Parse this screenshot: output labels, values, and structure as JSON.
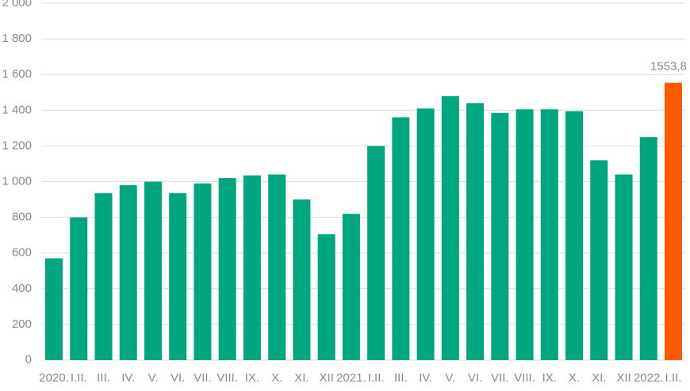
{
  "chart_data": {
    "type": "bar",
    "categories": [
      "2020.",
      "I.II.",
      "III.",
      "IV.",
      "V.",
      "VI.",
      "VII.",
      "VIII.",
      "IX.",
      "X.",
      "XI.",
      "XII",
      "2021.",
      "I.II.",
      "III.",
      "IV.",
      "V.",
      "VI.",
      "VII.",
      "VIII.",
      "IX.",
      "X.",
      "XI.",
      "XII",
      "2022.",
      "I.II."
    ],
    "values": [
      570,
      800,
      935,
      980,
      1000,
      935,
      990,
      1020,
      1035,
      1040,
      900,
      705,
      820,
      1200,
      1360,
      1410,
      1480,
      1440,
      1385,
      1405,
      1405,
      1395,
      1120,
      1040,
      1250,
      1553.8
    ],
    "value_labels": [
      null,
      null,
      null,
      null,
      null,
      null,
      null,
      null,
      null,
      null,
      null,
      null,
      null,
      null,
      null,
      null,
      null,
      null,
      null,
      null,
      null,
      null,
      null,
      null,
      null,
      "1553,8"
    ],
    "colors": [
      "#00a67e",
      "#00a67e",
      "#00a67e",
      "#00a67e",
      "#00a67e",
      "#00a67e",
      "#00a67e",
      "#00a67e",
      "#00a67e",
      "#00a67e",
      "#00a67e",
      "#00a67e",
      "#00a67e",
      "#00a67e",
      "#00a67e",
      "#00a67e",
      "#00a67e",
      "#00a67e",
      "#00a67e",
      "#00a67e",
      "#00a67e",
      "#00a67e",
      "#00a67e",
      "#00a67e",
      "#00a67e",
      "#ff5a00"
    ],
    "ylim": [
      0,
      2000
    ],
    "yticks": [
      0,
      200,
      400,
      600,
      800,
      {
        "value": 1000,
        "label": "1 000"
      },
      {
        "value": 1200,
        "label": "1 200"
      },
      {
        "value": 1400,
        "label": "1 400"
      },
      {
        "value": 1600,
        "label": "1 600"
      },
      {
        "value": 1800,
        "label": "1 800"
      },
      {
        "value": 2000,
        "label": "2 000"
      }
    ],
    "grid": true
  }
}
